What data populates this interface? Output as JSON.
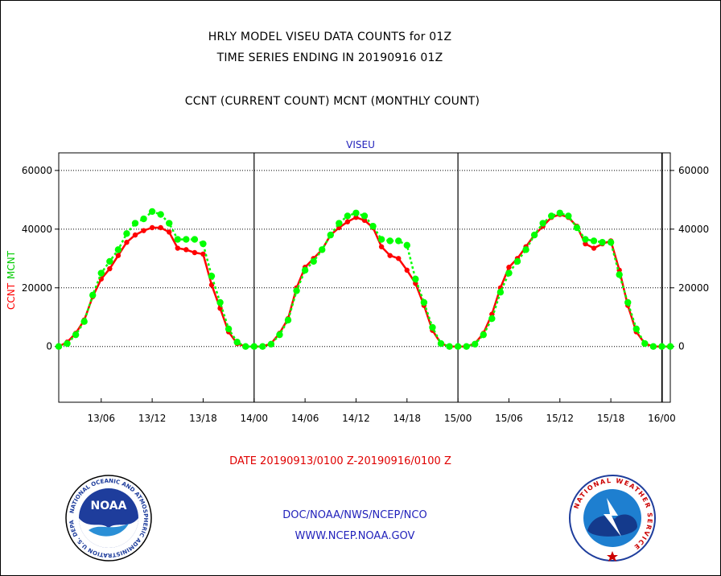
{
  "header": {
    "line1": "HRLY MODEL VISEU DATA COUNTS for 01Z",
    "line2": "TIME SERIES ENDING IN 20190916 01Z",
    "line3": "CCNT (CURRENT COUNT) MCNT (MONTHLY COUNT)"
  },
  "chart_data": {
    "type": "line",
    "title": "VISEU",
    "ylabel_ccnt": "CCNT",
    "ylabel_mcnt": "MCNT",
    "ylim": [
      -19000,
      66000
    ],
    "yticks": [
      0,
      20000,
      40000,
      60000
    ],
    "ytick_labels": [
      "0",
      "20000",
      "40000",
      "60000"
    ],
    "xtick_labels": [
      "13/06",
      "13/12",
      "13/18",
      "14/00",
      "14/06",
      "14/12",
      "14/18",
      "15/00",
      "15/06",
      "15/12",
      "15/18",
      "16/00"
    ],
    "xtick_hours": [
      5,
      11,
      17,
      23,
      29,
      35,
      41,
      47,
      53,
      59,
      65,
      71
    ],
    "day_boundaries": [
      23,
      47,
      71
    ],
    "xlim": [
      0,
      72
    ],
    "x_unit": "hours after 2019-09-13 01Z",
    "grid": "horizontal dotted",
    "series": [
      {
        "name": "CCNT",
        "color": "#ff0000",
        "x": [
          0,
          1,
          2,
          3,
          4,
          5,
          6,
          7,
          8,
          9,
          10,
          11,
          12,
          13,
          14,
          15,
          16,
          17,
          18,
          19,
          20,
          21,
          22,
          23,
          24,
          25,
          26,
          27,
          28,
          29,
          30,
          31,
          32,
          33,
          34,
          35,
          36,
          37,
          38,
          39,
          40,
          41,
          42,
          43,
          44,
          45,
          46,
          47,
          48,
          49,
          50,
          51,
          52,
          53,
          54,
          55,
          56,
          57,
          58,
          59,
          60,
          61,
          62,
          63,
          64,
          65,
          66,
          67,
          68,
          69,
          70,
          71,
          72
        ],
        "values": [
          0,
          1500,
          4500,
          9000,
          17000,
          23000,
          26500,
          31000,
          35500,
          38000,
          39500,
          40500,
          40500,
          39000,
          33500,
          33000,
          32000,
          31500,
          21000,
          13000,
          5000,
          1000,
          0,
          0,
          0,
          1000,
          4500,
          9500,
          20000,
          27000,
          30000,
          33000,
          38000,
          40500,
          42500,
          44000,
          43000,
          40500,
          34000,
          31000,
          30000,
          26000,
          21500,
          14000,
          5500,
          1000,
          0,
          0,
          0,
          1000,
          4500,
          11000,
          20000,
          27000,
          30000,
          34000,
          38000,
          41000,
          44000,
          45000,
          44000,
          41000,
          35000,
          33500,
          35000,
          36000,
          26000,
          14000,
          5000,
          1000,
          0,
          0,
          0
        ]
      },
      {
        "name": "MCNT",
        "color": "#00ff00",
        "x": [
          0,
          1,
          2,
          3,
          4,
          5,
          6,
          7,
          8,
          9,
          10,
          11,
          12,
          13,
          14,
          15,
          16,
          17,
          18,
          19,
          20,
          21,
          22,
          23,
          24,
          25,
          26,
          27,
          28,
          29,
          30,
          31,
          32,
          33,
          34,
          35,
          36,
          37,
          38,
          39,
          40,
          41,
          42,
          43,
          44,
          45,
          46,
          47,
          48,
          49,
          50,
          51,
          52,
          53,
          54,
          55,
          56,
          57,
          58,
          59,
          60,
          61,
          62,
          63,
          64,
          65,
          66,
          67,
          68,
          69,
          70,
          71,
          72
        ],
        "values": [
          0,
          1000,
          4000,
          8500,
          17500,
          25000,
          29000,
          33000,
          38500,
          42000,
          43500,
          46000,
          45000,
          42000,
          36500,
          36500,
          36500,
          35000,
          24000,
          15000,
          6000,
          1500,
          0,
          0,
          0,
          800,
          4000,
          9000,
          19000,
          26000,
          29000,
          33000,
          38000,
          42000,
          44500,
          45500,
          44500,
          41000,
          36500,
          36000,
          36000,
          34500,
          23000,
          15000,
          6500,
          1000,
          0,
          0,
          0,
          800,
          4000,
          9500,
          18500,
          25000,
          29000,
          33000,
          38000,
          42000,
          44500,
          45500,
          44500,
          40500,
          36500,
          36000,
          35500,
          35500,
          24500,
          15000,
          6000,
          1000,
          0,
          0,
          0
        ]
      }
    ],
    "xlabel": "DATE 20190913/0100 Z-20190916/0100 Z"
  },
  "footer": {
    "org": "DOC/NOAA/NWS/NCEP/NCO",
    "url": "WWW.NCEP.NOAA.GOV"
  },
  "logos": {
    "left_text": "NOAA",
    "left_ring": "NATIONAL OCEANIC AND ATMOSPHERIC ADMINISTRATION U.S. DEPARTMENT OF COMMERCE",
    "right_ring": "NATIONAL WEATHER SERVICE"
  },
  "colors": {
    "ccnt": "#ff0000",
    "mcnt": "#00ff00",
    "title_blue": "#2222bb",
    "date_red": "#e00000"
  }
}
